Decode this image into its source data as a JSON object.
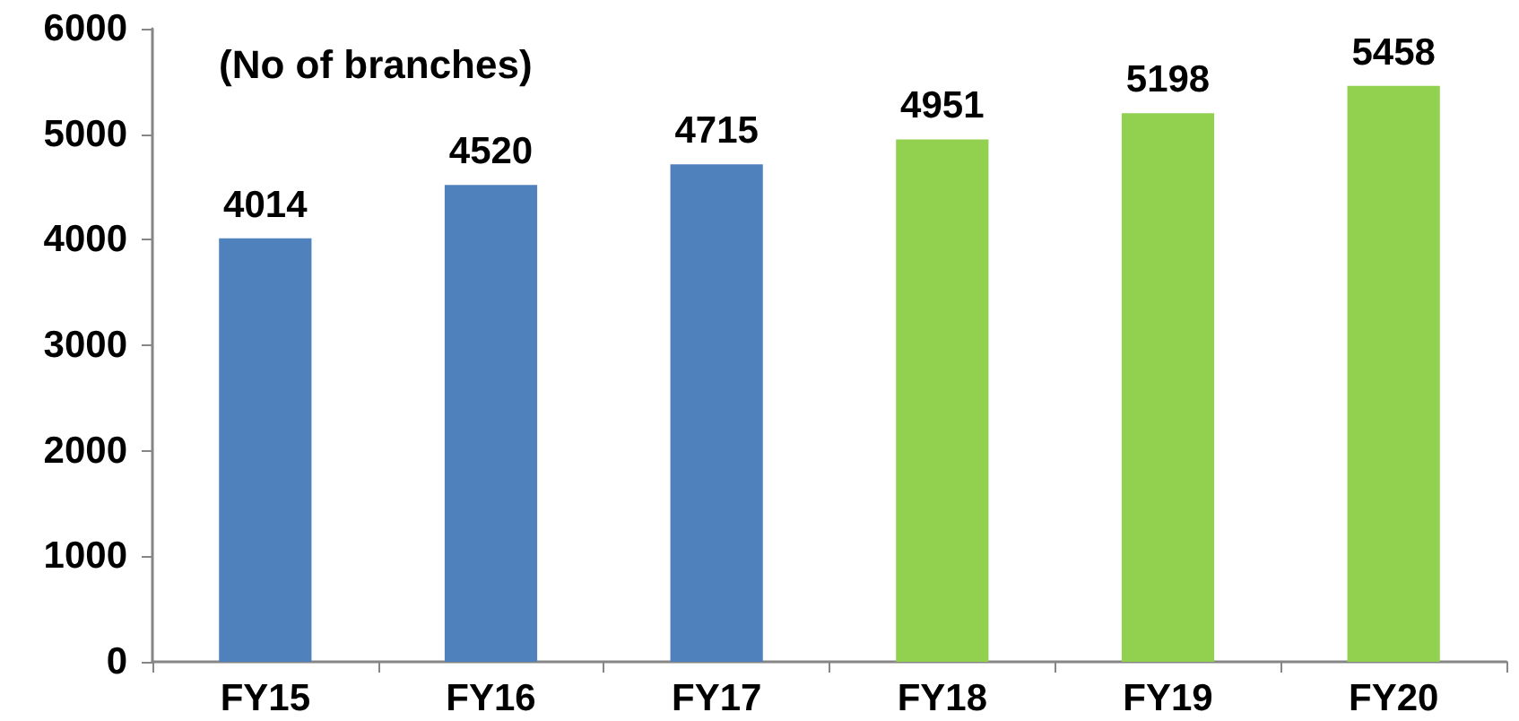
{
  "chart_data": {
    "type": "bar",
    "ylabel": "(No of branches)",
    "categories": [
      "FY15",
      "FY16",
      "FY17",
      "FY18",
      "FY19",
      "FY20"
    ],
    "values": [
      4014,
      4520,
      4715,
      4951,
      5198,
      5458
    ],
    "colors": [
      "#4f81bd",
      "#4f81bd",
      "#4f81bd",
      "#92d050",
      "#92d050",
      "#92d050"
    ],
    "ylim": [
      0,
      6000
    ],
    "yticks": [
      0,
      1000,
      2000,
      3000,
      4000,
      5000,
      6000
    ],
    "grid": false,
    "data_labels": true
  }
}
